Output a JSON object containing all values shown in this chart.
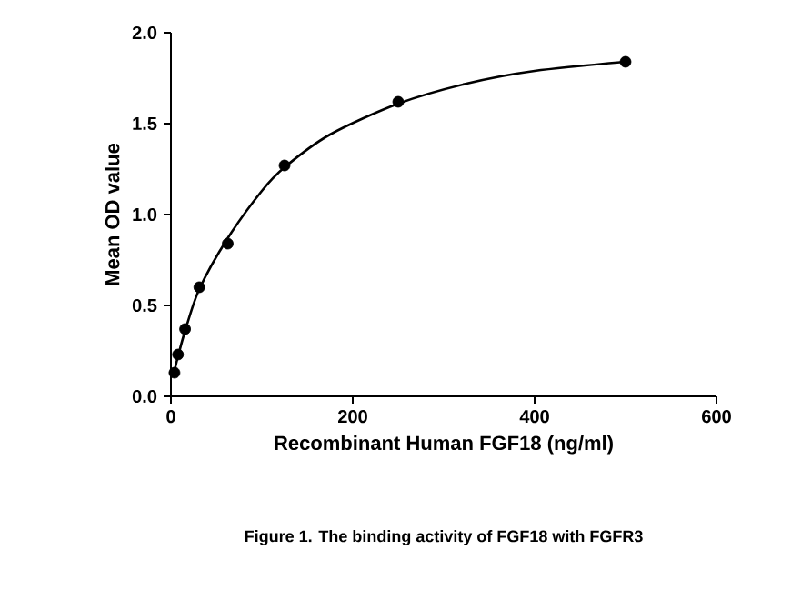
{
  "chart_data": {
    "type": "scatter",
    "xlabel": "Recombinant Human FGF18 (ng/ml)",
    "ylabel": "Mean OD value",
    "annotations": [
      "Figure 1. The binding activity of FGF18 with FGFR3"
    ],
    "xlim": [
      0,
      600
    ],
    "xticks": [
      0,
      200,
      400,
      600
    ],
    "ylim": [
      0,
      2.0
    ],
    "yticks": [
      {
        "value": 0,
        "label": "0.0"
      },
      {
        "value": 0.5,
        "label": "0.5"
      },
      {
        "value": 1,
        "label": "1.0"
      },
      {
        "value": 1.5,
        "label": "1.5"
      },
      {
        "value": 2,
        "label": "2.0"
      }
    ],
    "grid": false,
    "series": [
      {
        "color": "#000000",
        "marker": "circle",
        "x": [
          3.9,
          7.8,
          15.6,
          31.25,
          62.5,
          125,
          250,
          500
        ],
        "values": [
          0.13,
          0.23,
          0.37,
          0.6,
          0.84,
          1.27,
          1.62,
          1.84
        ]
      },
      {
        "type": "line",
        "color": "#000000",
        "marker": "none",
        "line_style": "solid",
        "x": [
          3.9,
          7.8,
          15.6,
          31.25,
          62.5,
          100,
          125,
          175,
          250,
          325,
          400,
          500
        ],
        "values": [
          0.14,
          0.22,
          0.36,
          0.59,
          0.87,
          1.13,
          1.26,
          1.44,
          1.61,
          1.72,
          1.79,
          1.84
        ]
      }
    ]
  }
}
